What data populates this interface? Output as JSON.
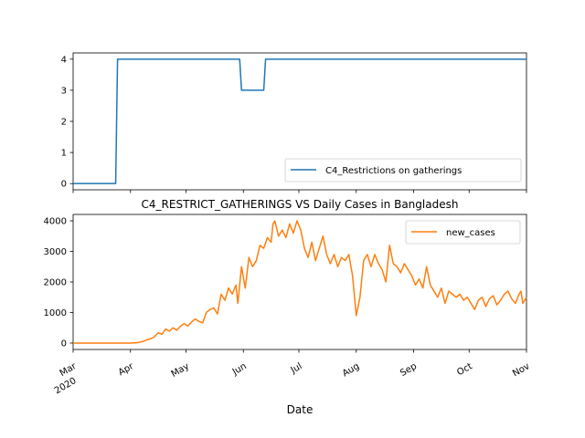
{
  "chart_data": [
    {
      "type": "line",
      "title": "",
      "xlabel": "",
      "ylabel": "",
      "x_range": [
        "2020-03-01",
        "2020-11-01"
      ],
      "ylim": [
        -0.2,
        4.2
      ],
      "y_ticks": [
        0,
        1,
        2,
        3,
        4
      ],
      "show_x_tick_labels": false,
      "legend_position": "lower-right",
      "series": [
        {
          "name": "C4_Restrictions on gatherings",
          "color": "#1f77b4",
          "step_points": [
            [
              "2020-03-01",
              0
            ],
            [
              "2020-03-24",
              0
            ],
            [
              "2020-03-25",
              4
            ],
            [
              "2020-05-30",
              4
            ],
            [
              "2020-05-31",
              3
            ],
            [
              "2020-06-12",
              3
            ],
            [
              "2020-06-13",
              4
            ],
            [
              "2020-11-01",
              4
            ]
          ]
        }
      ]
    },
    {
      "type": "line",
      "title": "C4_RESTRICT_GATHERINGS VS Daily Cases in Bangladesh",
      "xlabel": "Date",
      "ylabel": "",
      "x_range": [
        "2020-03-01",
        "2020-11-01"
      ],
      "ylim": [
        -210,
        4210
      ],
      "y_ticks": [
        0,
        1000,
        2000,
        3000,
        4000
      ],
      "x_ticks": [
        {
          "date": "2020-03-01",
          "label": "Mar",
          "sublabel": "2020"
        },
        {
          "date": "2020-04-01",
          "label": "Apr",
          "sublabel": ""
        },
        {
          "date": "2020-05-01",
          "label": "May",
          "sublabel": ""
        },
        {
          "date": "2020-06-01",
          "label": "Jun",
          "sublabel": ""
        },
        {
          "date": "2020-07-01",
          "label": "Jul",
          "sublabel": ""
        },
        {
          "date": "2020-08-01",
          "label": "Aug",
          "sublabel": ""
        },
        {
          "date": "2020-09-01",
          "label": "Sep",
          "sublabel": ""
        },
        {
          "date": "2020-10-01",
          "label": "Oct",
          "sublabel": ""
        },
        {
          "date": "2020-11-01",
          "label": "Nov",
          "sublabel": ""
        }
      ],
      "legend_position": "upper-right",
      "series": [
        {
          "name": "new_cases",
          "color": "#ff7f0e",
          "points": [
            [
              "2020-03-01",
              0
            ],
            [
              "2020-03-15",
              0
            ],
            [
              "2020-04-01",
              0
            ],
            [
              "2020-04-05",
              15
            ],
            [
              "2020-04-08",
              60
            ],
            [
              "2020-04-10",
              110
            ],
            [
              "2020-04-12",
              140
            ],
            [
              "2020-04-14",
              210
            ],
            [
              "2020-04-16",
              340
            ],
            [
              "2020-04-18",
              290
            ],
            [
              "2020-04-20",
              460
            ],
            [
              "2020-04-22",
              390
            ],
            [
              "2020-04-24",
              500
            ],
            [
              "2020-04-26",
              420
            ],
            [
              "2020-04-28",
              550
            ],
            [
              "2020-04-30",
              640
            ],
            [
              "2020-05-02",
              560
            ],
            [
              "2020-05-04",
              690
            ],
            [
              "2020-05-06",
              790
            ],
            [
              "2020-05-08",
              710
            ],
            [
              "2020-05-10",
              660
            ],
            [
              "2020-05-12",
              1000
            ],
            [
              "2020-05-14",
              1100
            ],
            [
              "2020-05-16",
              1150
            ],
            [
              "2020-05-18",
              950
            ],
            [
              "2020-05-20",
              1600
            ],
            [
              "2020-05-22",
              1400
            ],
            [
              "2020-05-24",
              1800
            ],
            [
              "2020-05-26",
              1600
            ],
            [
              "2020-05-28",
              1900
            ],
            [
              "2020-05-29",
              1300
            ],
            [
              "2020-05-31",
              2500
            ],
            [
              "2020-06-02",
              1800
            ],
            [
              "2020-06-04",
              2800
            ],
            [
              "2020-06-06",
              2500
            ],
            [
              "2020-06-08",
              2700
            ],
            [
              "2020-06-10",
              3200
            ],
            [
              "2020-06-12",
              3100
            ],
            [
              "2020-06-14",
              3450
            ],
            [
              "2020-06-16",
              3300
            ],
            [
              "2020-06-17",
              3900
            ],
            [
              "2020-06-18",
              4000
            ],
            [
              "2020-06-20",
              3500
            ],
            [
              "2020-06-22",
              3700
            ],
            [
              "2020-06-24",
              3450
            ],
            [
              "2020-06-26",
              3900
            ],
            [
              "2020-06-28",
              3600
            ],
            [
              "2020-06-30",
              4000
            ],
            [
              "2020-07-02",
              3700
            ],
            [
              "2020-07-04",
              3100
            ],
            [
              "2020-07-06",
              2800
            ],
            [
              "2020-07-08",
              3300
            ],
            [
              "2020-07-10",
              2700
            ],
            [
              "2020-07-12",
              3100
            ],
            [
              "2020-07-14",
              3500
            ],
            [
              "2020-07-16",
              2900
            ],
            [
              "2020-07-18",
              2600
            ],
            [
              "2020-07-20",
              2900
            ],
            [
              "2020-07-22",
              2500
            ],
            [
              "2020-07-24",
              2800
            ],
            [
              "2020-07-26",
              2700
            ],
            [
              "2020-07-28",
              2900
            ],
            [
              "2020-07-30",
              2200
            ],
            [
              "2020-08-01",
              900
            ],
            [
              "2020-08-03",
              1500
            ],
            [
              "2020-08-05",
              2700
            ],
            [
              "2020-08-07",
              2900
            ],
            [
              "2020-08-09",
              2500
            ],
            [
              "2020-08-11",
              2900
            ],
            [
              "2020-08-13",
              2600
            ],
            [
              "2020-08-15",
              2400
            ],
            [
              "2020-08-17",
              2000
            ],
            [
              "2020-08-19",
              3200
            ],
            [
              "2020-08-21",
              2600
            ],
            [
              "2020-08-23",
              2500
            ],
            [
              "2020-08-25",
              2300
            ],
            [
              "2020-08-27",
              2600
            ],
            [
              "2020-08-29",
              2400
            ],
            [
              "2020-08-31",
              2200
            ],
            [
              "2020-09-02",
              1900
            ],
            [
              "2020-09-04",
              2100
            ],
            [
              "2020-09-06",
              1800
            ],
            [
              "2020-09-08",
              2500
            ],
            [
              "2020-09-10",
              1900
            ],
            [
              "2020-09-12",
              1700
            ],
            [
              "2020-09-14",
              1500
            ],
            [
              "2020-09-16",
              1800
            ],
            [
              "2020-09-18",
              1300
            ],
            [
              "2020-09-20",
              1700
            ],
            [
              "2020-09-22",
              1600
            ],
            [
              "2020-09-24",
              1500
            ],
            [
              "2020-09-26",
              1600
            ],
            [
              "2020-09-28",
              1400
            ],
            [
              "2020-09-30",
              1500
            ],
            [
              "2020-10-02",
              1300
            ],
            [
              "2020-10-04",
              1100
            ],
            [
              "2020-10-06",
              1400
            ],
            [
              "2020-10-08",
              1500
            ],
            [
              "2020-10-10",
              1200
            ],
            [
              "2020-10-12",
              1450
            ],
            [
              "2020-10-14",
              1550
            ],
            [
              "2020-10-16",
              1250
            ],
            [
              "2020-10-18",
              1400
            ],
            [
              "2020-10-20",
              1600
            ],
            [
              "2020-10-22",
              1700
            ],
            [
              "2020-10-24",
              1450
            ],
            [
              "2020-10-26",
              1300
            ],
            [
              "2020-10-28",
              1600
            ],
            [
              "2020-10-29",
              1700
            ],
            [
              "2020-10-30",
              1300
            ],
            [
              "2020-11-01",
              1500
            ]
          ]
        }
      ]
    }
  ]
}
